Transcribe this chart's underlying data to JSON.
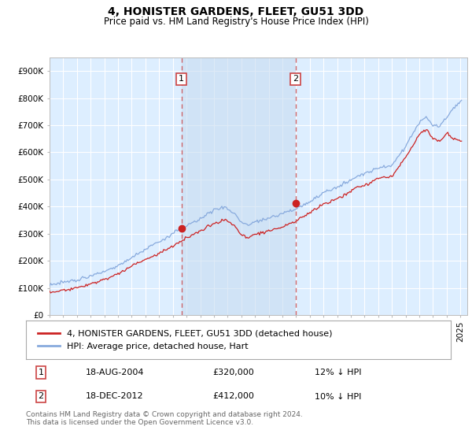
{
  "title": "4, HONISTER GARDENS, FLEET, GU51 3DD",
  "subtitle": "Price paid vs. HM Land Registry's House Price Index (HPI)",
  "ylabel_ticks": [
    "£0",
    "£100K",
    "£200K",
    "£300K",
    "£400K",
    "£500K",
    "£600K",
    "£700K",
    "£800K",
    "£900K"
  ],
  "ylim": [
    0,
    950000
  ],
  "xlim_start": 1995.0,
  "xlim_end": 2025.5,
  "plot_bg_color": "#ddeeff",
  "grid_color": "#ffffff",
  "hpi_color": "#88aadd",
  "price_color": "#cc2222",
  "dashed_color": "#cc4444",
  "fill_color": "#c8dcf0",
  "marker1_year": 2004.63,
  "marker2_year": 2012.96,
  "marker1_price": 320000,
  "marker2_price": 412000,
  "legend_entries": [
    "4, HONISTER GARDENS, FLEET, GU51 3DD (detached house)",
    "HPI: Average price, detached house, Hart"
  ],
  "table_rows": [
    [
      "1",
      "18-AUG-2004",
      "£320,000",
      "12% ↓ HPI"
    ],
    [
      "2",
      "18-DEC-2012",
      "£412,000",
      "10% ↓ HPI"
    ]
  ],
  "footnote": "Contains HM Land Registry data © Crown copyright and database right 2024.\nThis data is licensed under the Open Government Licence v3.0.",
  "title_fontsize": 10,
  "subtitle_fontsize": 8.5,
  "tick_fontsize": 7.5,
  "legend_fontsize": 8,
  "table_fontsize": 8,
  "footnote_fontsize": 6.5
}
